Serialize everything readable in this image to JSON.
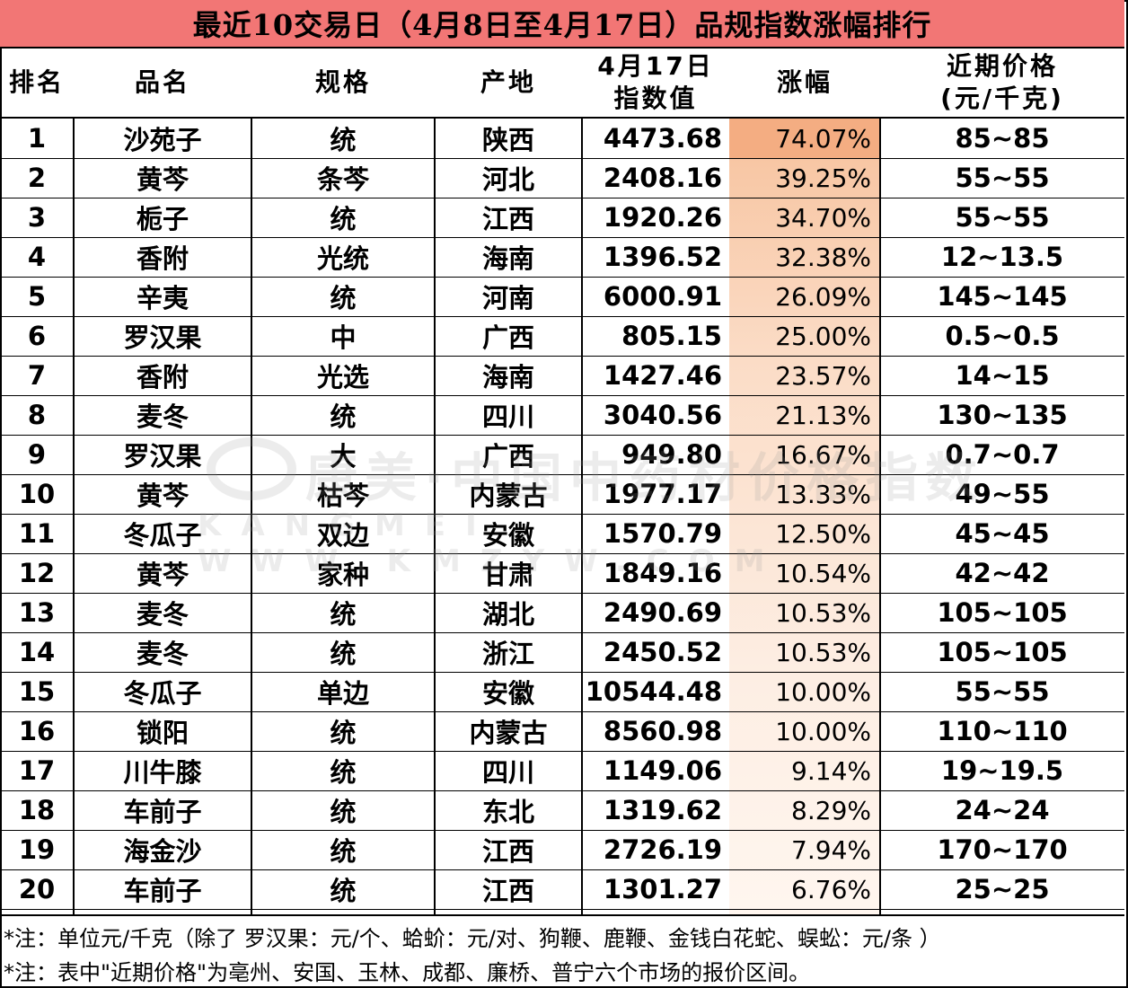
{
  "title": "最近10交易日（4月8日至4月17日）品规指数涨幅排行",
  "headers": {
    "rank": "排名",
    "name": "品名",
    "spec": "规格",
    "origin": "产地",
    "index_line1": "4月17日",
    "index_line2": "指数值",
    "change": "涨幅",
    "price_line1": "近期价格",
    "price_line2": "(元/千克)"
  },
  "rows": [
    {
      "rank": "1",
      "name": "沙苑子",
      "spec": "统",
      "origin": "陕西",
      "index": "4473.68",
      "change": "74.07%",
      "price": "85~85"
    },
    {
      "rank": "2",
      "name": "黄芩",
      "spec": "条芩",
      "origin": "河北",
      "index": "2408.16",
      "change": "39.25%",
      "price": "55~55"
    },
    {
      "rank": "3",
      "name": "栀子",
      "spec": "统",
      "origin": "江西",
      "index": "1920.26",
      "change": "34.70%",
      "price": "55~55"
    },
    {
      "rank": "4",
      "name": "香附",
      "spec": "光统",
      "origin": "海南",
      "index": "1396.52",
      "change": "32.38%",
      "price": "12~13.5"
    },
    {
      "rank": "5",
      "name": "辛夷",
      "spec": "统",
      "origin": "河南",
      "index": "6000.91",
      "change": "26.09%",
      "price": "145~145"
    },
    {
      "rank": "6",
      "name": "罗汉果",
      "spec": "中",
      "origin": "广西",
      "index": "805.15",
      "change": "25.00%",
      "price": "0.5~0.5"
    },
    {
      "rank": "7",
      "name": "香附",
      "spec": "光选",
      "origin": "海南",
      "index": "1427.46",
      "change": "23.57%",
      "price": "14~15"
    },
    {
      "rank": "8",
      "name": "麦冬",
      "spec": "统",
      "origin": "四川",
      "index": "3040.56",
      "change": "21.13%",
      "price": "130~135"
    },
    {
      "rank": "9",
      "name": "罗汉果",
      "spec": "大",
      "origin": "广西",
      "index": "949.80",
      "change": "16.67%",
      "price": "0.7~0.7"
    },
    {
      "rank": "10",
      "name": "黄芩",
      "spec": "枯芩",
      "origin": "内蒙古",
      "index": "1977.17",
      "change": "13.33%",
      "price": "49~55"
    },
    {
      "rank": "11",
      "name": "冬瓜子",
      "spec": "双边",
      "origin": "安徽",
      "index": "1570.79",
      "change": "12.50%",
      "price": "45~45"
    },
    {
      "rank": "12",
      "name": "黄芩",
      "spec": "家种",
      "origin": "甘肃",
      "index": "1849.16",
      "change": "10.54%",
      "price": "42~42"
    },
    {
      "rank": "13",
      "name": "麦冬",
      "spec": "统",
      "origin": "湖北",
      "index": "2490.69",
      "change": "10.53%",
      "price": "105~105"
    },
    {
      "rank": "14",
      "name": "麦冬",
      "spec": "统",
      "origin": "浙江",
      "index": "2450.52",
      "change": "10.53%",
      "price": "105~105"
    },
    {
      "rank": "15",
      "name": "冬瓜子",
      "spec": "单边",
      "origin": "安徽",
      "index": "10544.48",
      "change": "10.00%",
      "price": "55~55"
    },
    {
      "rank": "16",
      "name": "锁阳",
      "spec": "统",
      "origin": "内蒙古",
      "index": "8560.98",
      "change": "10.00%",
      "price": "110~110"
    },
    {
      "rank": "17",
      "name": "川牛膝",
      "spec": "统",
      "origin": "四川",
      "index": "1149.06",
      "change": "9.14%",
      "price": "19~19.5"
    },
    {
      "rank": "18",
      "name": "车前子",
      "spec": "统",
      "origin": "东北",
      "index": "1319.62",
      "change": "8.29%",
      "price": "24~24"
    },
    {
      "rank": "19",
      "name": "海金沙",
      "spec": "统",
      "origin": "江西",
      "index": "2726.19",
      "change": "7.94%",
      "price": "170~170"
    },
    {
      "rank": "20",
      "name": "车前子",
      "spec": "统",
      "origin": "江西",
      "index": "1301.27",
      "change": "6.76%",
      "price": "25~25"
    }
  ],
  "notes": [
    "*注：单位元/千克（除了 罗汉果：元/个、蛤蚧：元/对、狗鞭、鹿鞭、金钱白花蛇、蜈蚣：元/条 ）",
    "*注：表中\"近期价格\"为亳州、安国、玉林、成都、廉桥、普宁六个市场的报价区间。"
  ],
  "watermark": {
    "main": "康美·中国中药材价格指数",
    "sub": "KANGMEI  WWW.KMZYW.COM"
  },
  "colors": {
    "title_bg": "#f27675",
    "highlight_top": "#f4ad82",
    "highlight_fade": "#fff6ef"
  }
}
